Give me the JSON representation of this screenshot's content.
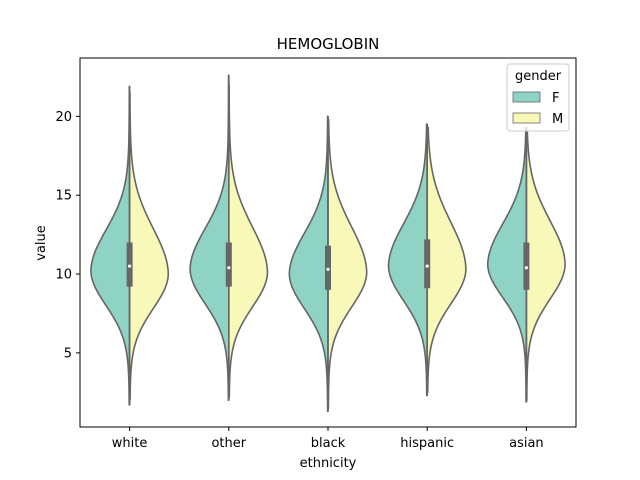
{
  "chart_data": {
    "type": "split-violin",
    "title": "HEMOGLOBIN",
    "xlabel": "ethnicity",
    "ylabel": "value",
    "categories": [
      "white",
      "other",
      "black",
      "hispanic",
      "asian"
    ],
    "ylim": [
      0.3,
      23.7
    ],
    "yticks": [
      5,
      10,
      15,
      20
    ],
    "legend": {
      "title": "gender",
      "position": "top-right",
      "entries": [
        "F",
        "M"
      ]
    },
    "colors": {
      "F": "#8fd3c4",
      "M": "#f8f8b8",
      "edge": "#666666",
      "box": "#666666"
    },
    "series": [
      {
        "name": "F",
        "violins": [
          {
            "category": "white",
            "min": 1.7,
            "max": 21.9,
            "mode": 10.2,
            "spread_low": 2.2,
            "spread_high": 2.6
          },
          {
            "category": "other",
            "min": 2.0,
            "max": 22.6,
            "mode": 10.3,
            "spread_low": 2.2,
            "spread_high": 2.6
          },
          {
            "category": "black",
            "min": 1.3,
            "max": 20.0,
            "mode": 10.0,
            "spread_low": 2.2,
            "spread_high": 2.6
          },
          {
            "category": "hispanic",
            "min": 2.3,
            "max": 19.5,
            "mode": 10.5,
            "spread_low": 2.2,
            "spread_high": 2.7
          },
          {
            "category": "asian",
            "min": 1.9,
            "max": 19.3,
            "mode": 10.6,
            "spread_low": 2.1,
            "spread_high": 2.6
          }
        ]
      },
      {
        "name": "M",
        "violins": [
          {
            "category": "white",
            "min": 2.0,
            "max": 21.5,
            "mode": 10.0,
            "spread_low": 2.2,
            "spread_high": 2.9
          },
          {
            "category": "other",
            "min": 2.2,
            "max": 22.0,
            "mode": 10.1,
            "spread_low": 2.2,
            "spread_high": 2.9
          },
          {
            "category": "black",
            "min": 1.5,
            "max": 19.8,
            "mode": 10.1,
            "spread_low": 2.2,
            "spread_high": 2.9
          },
          {
            "category": "hispanic",
            "min": 2.5,
            "max": 19.3,
            "mode": 10.3,
            "spread_low": 2.2,
            "spread_high": 3.0
          },
          {
            "category": "asian",
            "min": 2.0,
            "max": 19.0,
            "mode": 10.6,
            "spread_low": 2.2,
            "spread_high": 2.8
          }
        ]
      }
    ],
    "box_stats": [
      {
        "category": "white",
        "q1": 9.2,
        "median": 10.5,
        "q3": 12.0
      },
      {
        "category": "other",
        "q1": 9.2,
        "median": 10.4,
        "q3": 12.0
      },
      {
        "category": "black",
        "q1": 9.0,
        "median": 10.3,
        "q3": 11.8
      },
      {
        "category": "hispanic",
        "q1": 9.1,
        "median": 10.5,
        "q3": 12.2
      },
      {
        "category": "asian",
        "q1": 9.0,
        "median": 10.4,
        "q3": 12.0
      }
    ]
  }
}
